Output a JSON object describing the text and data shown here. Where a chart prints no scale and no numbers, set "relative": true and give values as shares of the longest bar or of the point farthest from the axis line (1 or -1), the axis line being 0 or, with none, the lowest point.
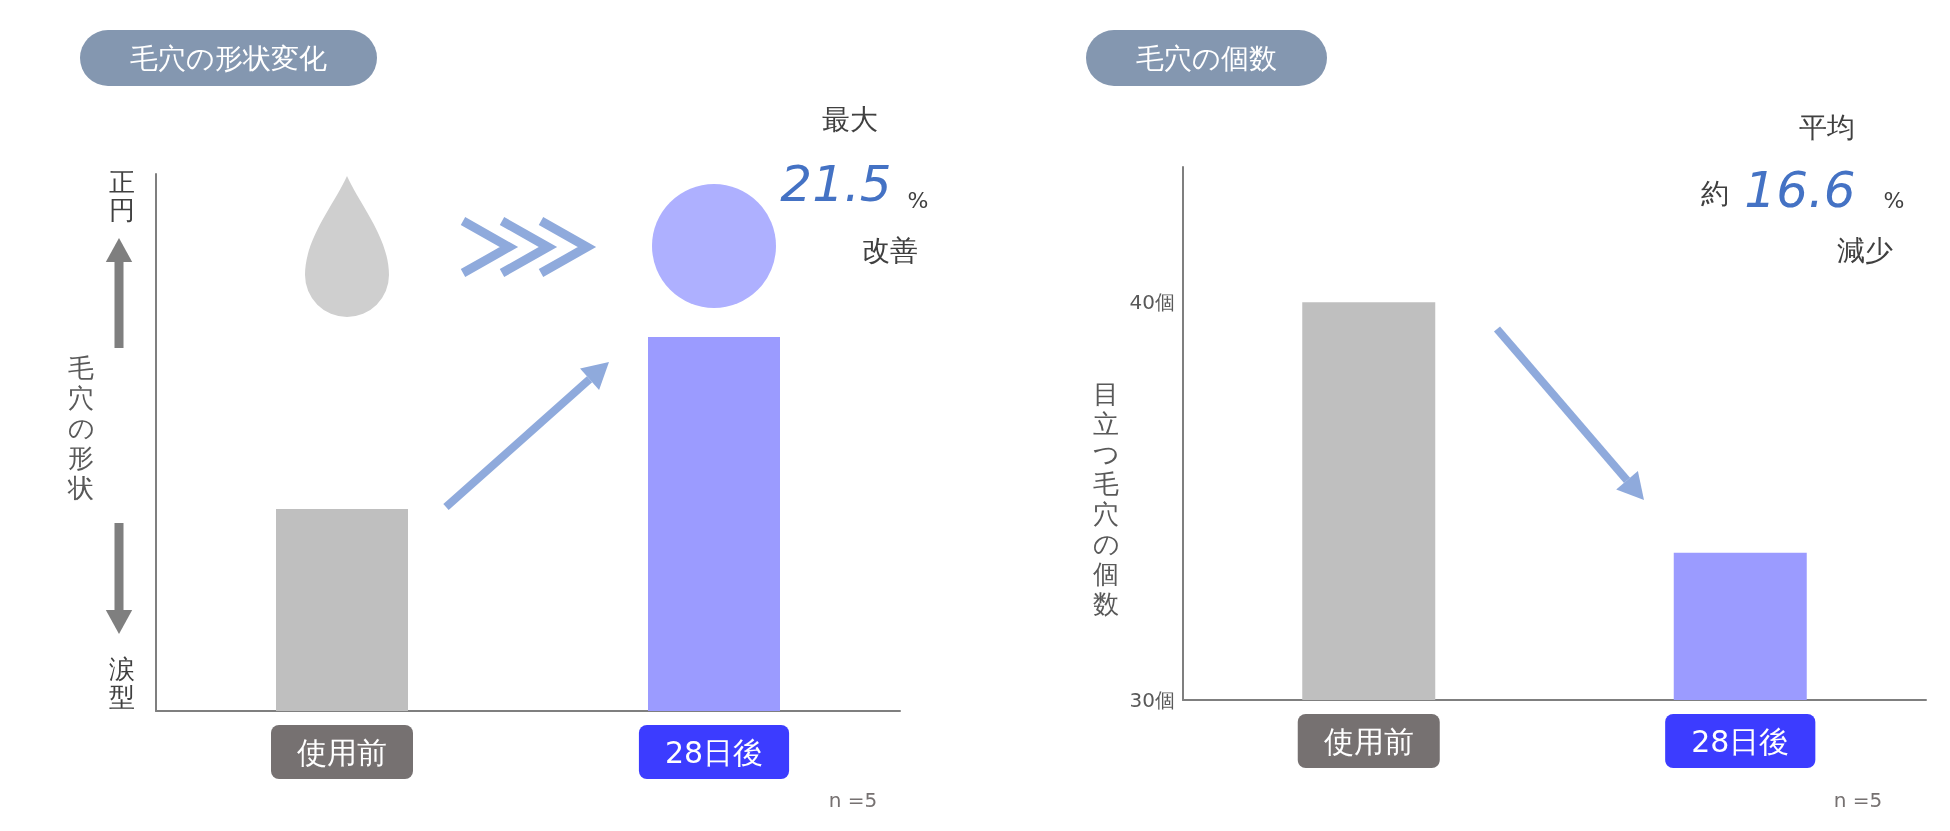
{
  "chart_data": [
    {
      "type": "bar",
      "title": "毛穴の形状変化",
      "ylabel": "毛穴の形状",
      "categories": [
        "使用前",
        "28日後"
      ],
      "colors": [
        "#bfbfbf",
        "#9b9bff"
      ],
      "values": [
        0.54,
        1
      ],
      "relative": true,
      "annotations": [
        "正円",
        "涙型",
        "最大",
        "21.5",
        "%",
        "改善",
        "n =5"
      ]
    },
    {
      "type": "bar",
      "title": "毛穴の個数",
      "ylabel": "目立つ毛穴の個数",
      "categories": [
        "使用前",
        "28日後"
      ],
      "colors": [
        "#bfbfbf",
        "#9b9bff"
      ],
      "values": [
        40,
        33.7
      ],
      "ylim": [
        30,
        43.4
      ],
      "yticks": [
        {
          "value": 30,
          "label": "30個"
        },
        {
          "value": 40,
          "label": "40個"
        }
      ],
      "annotations": [
        "平均",
        "約",
        "16.6",
        "%",
        "減少",
        "n =5"
      ]
    }
  ]
}
